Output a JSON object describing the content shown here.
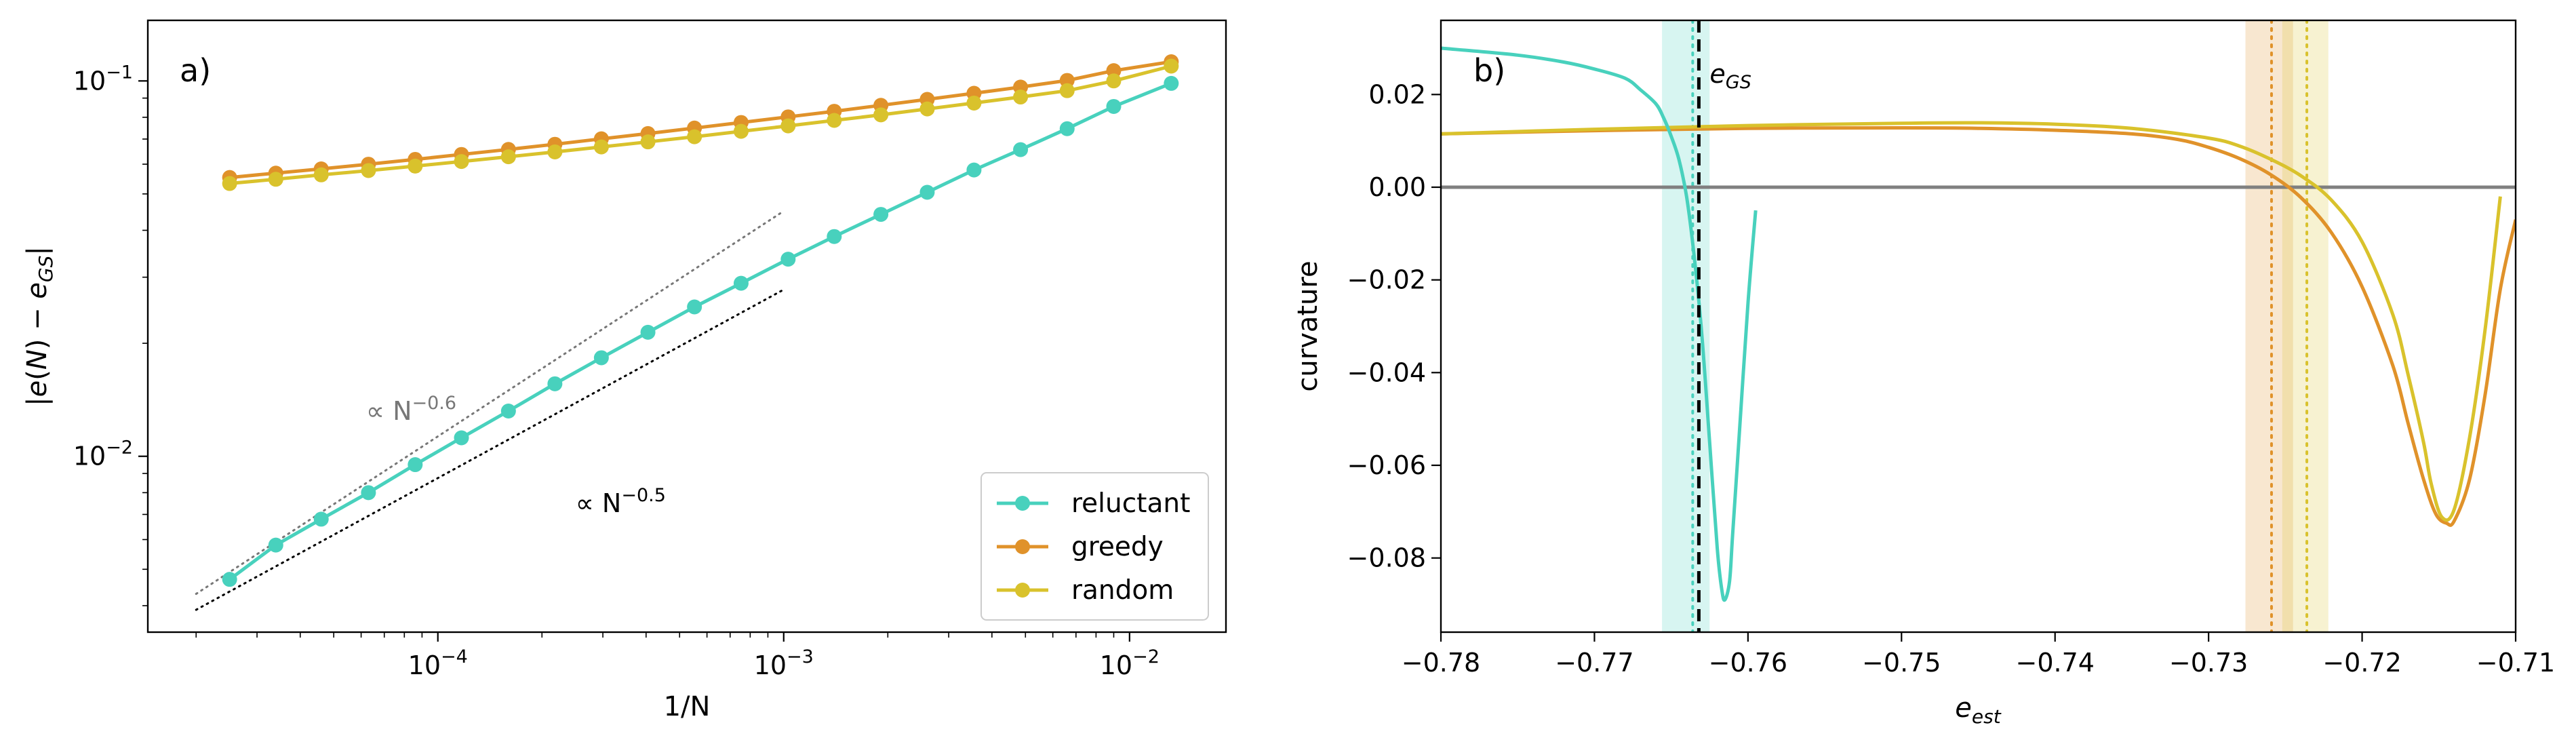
{
  "chart_data": [
    {
      "type": "line",
      "panel_tag": "a)",
      "xlabel": "1/N",
      "ylabel": "|e(N) − e_GS|",
      "xscale": "log",
      "yscale": "log",
      "xlim": [
        1.45e-05,
        0.019
      ],
      "ylim": [
        0.0034,
        0.145
      ],
      "x_ticks": [
        {
          "value": 0.0001,
          "base": "10",
          "exp": "−4"
        },
        {
          "value": 0.001,
          "base": "10",
          "exp": "−3"
        },
        {
          "value": 0.01,
          "base": "10",
          "exp": "−2"
        }
      ],
      "y_ticks": [
        {
          "value": 0.01,
          "base": "10",
          "exp": "−2"
        },
        {
          "value": 0.1,
          "base": "10",
          "exp": "−1"
        }
      ],
      "legend_position": "lower-right",
      "series": [
        {
          "name": "reluctant",
          "color": "#48d1bd",
          "x": [
            2.5e-05,
            3.4e-05,
            4.6e-05,
            6.3e-05,
            8.6e-05,
            0.000117,
            0.00016,
            0.000218,
            0.000297,
            0.000405,
            0.000552,
            0.000753,
            0.00103,
            0.0014,
            0.00191,
            0.0026,
            0.00355,
            0.00484,
            0.0066,
            0.009,
            0.0132
          ],
          "y": [
            0.0047,
            0.0058,
            0.0068,
            0.008,
            0.0095,
            0.0112,
            0.0132,
            0.0156,
            0.0183,
            0.0214,
            0.025,
            0.0289,
            0.0335,
            0.0385,
            0.0441,
            0.0505,
            0.0579,
            0.0656,
            0.0746,
            0.0855,
            0.0985
          ]
        },
        {
          "name": "greedy",
          "color": "#e0922a",
          "x": [
            2.5e-05,
            3.4e-05,
            4.6e-05,
            6.3e-05,
            8.6e-05,
            0.000117,
            0.00016,
            0.000218,
            0.000297,
            0.000405,
            0.000552,
            0.000753,
            0.00103,
            0.0014,
            0.00191,
            0.0026,
            0.00355,
            0.00484,
            0.0066,
            0.009,
            0.0132
          ],
          "y": [
            0.0553,
            0.0568,
            0.0583,
            0.06,
            0.0618,
            0.0637,
            0.0657,
            0.0678,
            0.0701,
            0.0724,
            0.0749,
            0.0775,
            0.0802,
            0.083,
            0.0861,
            0.0893,
            0.0927,
            0.0963,
            0.1003,
            0.1065,
            0.1125
          ]
        },
        {
          "name": "random",
          "color": "#d9c22c",
          "x": [
            2.5e-05,
            3.4e-05,
            4.6e-05,
            6.3e-05,
            8.6e-05,
            0.000117,
            0.00016,
            0.000218,
            0.000297,
            0.000405,
            0.000552,
            0.000753,
            0.00103,
            0.0014,
            0.00191,
            0.0026,
            0.00355,
            0.00484,
            0.0066,
            0.009,
            0.0132
          ],
          "y": [
            0.0533,
            0.0547,
            0.0562,
            0.0577,
            0.0593,
            0.061,
            0.0628,
            0.0647,
            0.0667,
            0.0688,
            0.071,
            0.0734,
            0.0759,
            0.0785,
            0.0812,
            0.0842,
            0.0873,
            0.0906,
            0.0942,
            0.1,
            0.1095
          ]
        }
      ],
      "guides": [
        {
          "label_base": "∝ N",
          "label_exp": "−0.6",
          "color": "#777777",
          "style": "dotted",
          "x": [
            2e-05,
            0.001
          ],
          "y": [
            0.0043,
            0.045
          ],
          "label_x": 6.2e-05,
          "label_y": 0.0125
        },
        {
          "label_base": "∝ N",
          "label_exp": "−0.5",
          "color": "#000000",
          "style": "dotted",
          "x": [
            2e-05,
            0.001
          ],
          "y": [
            0.0039,
            0.0278
          ],
          "label_x": 0.00025,
          "label_y": 0.0071
        }
      ]
    },
    {
      "type": "line",
      "panel_tag": "b)",
      "xlabel": "e_est",
      "ylabel": "curvature",
      "xlim": [
        -0.78,
        -0.71
      ],
      "ylim": [
        -0.096,
        0.036
      ],
      "x_ticks": [
        "−0.78",
        "−0.77",
        "−0.76",
        "−0.75",
        "−0.74",
        "−0.73",
        "−0.72",
        "−0.71"
      ],
      "x_tick_values": [
        -0.78,
        -0.77,
        -0.76,
        -0.75,
        -0.74,
        -0.73,
        -0.72,
        -0.71
      ],
      "y_ticks": [
        "0.02",
        "0.00",
        "−0.02",
        "−0.04",
        "−0.06",
        "−0.08"
      ],
      "y_tick_values": [
        0.02,
        0.0,
        -0.02,
        -0.04,
        -0.06,
        -0.08
      ],
      "egs_label": "e_GS",
      "egs_value": -0.7632,
      "zero_line": {
        "y": 0.0,
        "color": "#808080"
      },
      "bands": [
        {
          "color": "#48d1bd",
          "x0": -0.7656,
          "x1": -0.7625,
          "center": -0.7636
        },
        {
          "color": "#e0922a",
          "x0": -0.7276,
          "x1": -0.7245,
          "center": -0.7259
        },
        {
          "color": "#d9c22c",
          "x0": -0.7252,
          "x1": -0.7222,
          "center": -0.7236
        }
      ],
      "series": [
        {
          "name": "reluctant",
          "color": "#48d1bd",
          "x": [
            -0.78,
            -0.775,
            -0.772,
            -0.77,
            -0.768,
            -0.767,
            -0.766,
            -0.7655,
            -0.765,
            -0.7645,
            -0.764,
            -0.7635,
            -0.763,
            -0.7625,
            -0.762,
            -0.7617,
            -0.7615,
            -0.7612,
            -0.761,
            -0.7605,
            -0.76,
            -0.7595
          ],
          "y": [
            0.03,
            0.0285,
            0.027,
            0.0255,
            0.0235,
            0.021,
            0.018,
            0.015,
            0.011,
            0.006,
            -0.002,
            -0.015,
            -0.032,
            -0.055,
            -0.078,
            -0.087,
            -0.089,
            -0.085,
            -0.075,
            -0.05,
            -0.025,
            -0.005
          ]
        },
        {
          "name": "greedy",
          "color": "#e0922a",
          "x": [
            -0.78,
            -0.77,
            -0.76,
            -0.75,
            -0.745,
            -0.74,
            -0.735,
            -0.732,
            -0.73,
            -0.728,
            -0.726,
            -0.724,
            -0.722,
            -0.72,
            -0.718,
            -0.717,
            -0.716,
            -0.7152,
            -0.7145,
            -0.714,
            -0.713,
            -0.712,
            -0.711,
            -0.71
          ],
          "y": [
            0.0115,
            0.0122,
            0.0127,
            0.0128,
            0.0127,
            0.0123,
            0.0115,
            0.0103,
            0.0086,
            0.0062,
            0.0028,
            -0.0022,
            -0.0098,
            -0.0215,
            -0.0385,
            -0.051,
            -0.063,
            -0.0705,
            -0.0725,
            -0.072,
            -0.063,
            -0.045,
            -0.022,
            -0.007
          ]
        },
        {
          "name": "random",
          "color": "#d9c22c",
          "x": [
            -0.78,
            -0.77,
            -0.76,
            -0.75,
            -0.745,
            -0.74,
            -0.735,
            -0.73,
            -0.728,
            -0.726,
            -0.724,
            -0.722,
            -0.72,
            -0.718,
            -0.717,
            -0.716,
            -0.7155,
            -0.7148,
            -0.714,
            -0.713,
            -0.712,
            -0.711
          ],
          "y": [
            0.0115,
            0.0125,
            0.0133,
            0.0138,
            0.0139,
            0.0136,
            0.0127,
            0.0106,
            0.0089,
            0.0061,
            0.0025,
            -0.0028,
            -0.0118,
            -0.0275,
            -0.0405,
            -0.055,
            -0.064,
            -0.0712,
            -0.0695,
            -0.054,
            -0.031,
            -0.002
          ]
        }
      ]
    }
  ]
}
